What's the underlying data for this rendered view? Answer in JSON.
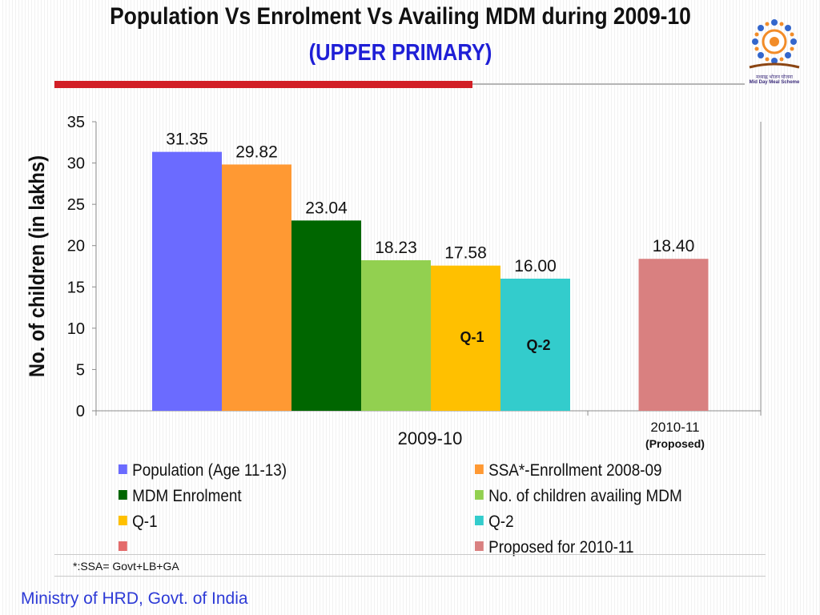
{
  "slide": {
    "title_line1": "Population Vs Enrolment Vs Availing MDM during  2009-10",
    "title_line2": "(UPPER PRIMARY)",
    "logo_text": "मध्याह्न भोजन योजना",
    "logo_subtext": "Mid Day Meal Scheme",
    "footnote": "*:SSA= Govt+LB+GA",
    "footer": "Ministry of HRD, Govt. of India"
  },
  "chart_data": {
    "type": "bar",
    "title": "",
    "ylabel": "No. of children (in lakhs)",
    "xlabel": "",
    "ylim": [
      0,
      35
    ],
    "yticks": [
      "0",
      "5",
      "10",
      "15",
      "20",
      "25",
      "30",
      "35"
    ],
    "grid": false,
    "legend_position": "bottom",
    "groups": [
      {
        "label": "2009-10",
        "sublabel": ""
      },
      {
        "label": "2010-11",
        "sublabel": "(Proposed)"
      }
    ],
    "series": [
      {
        "name": "Population (Age 11-13)",
        "group": 0,
        "value": 31.35,
        "label": "31.35",
        "color": "#6b6bff"
      },
      {
        "name": "SSA*-Enrollment 2008-09",
        "group": 0,
        "value": 29.82,
        "label": "29.82",
        "color": "#ff9933"
      },
      {
        "name": "MDM Enrolment",
        "group": 0,
        "value": 23.04,
        "label": "23.04",
        "color": "#006600"
      },
      {
        "name": "No. of children availing MDM",
        "group": 0,
        "value": 18.23,
        "label": "18.23",
        "color": "#92d050"
      },
      {
        "name": "Q-1",
        "group": 0,
        "value": 17.58,
        "label": "17.58",
        "color": "#ffc000",
        "inner_label": "Q-1"
      },
      {
        "name": "Q-2",
        "group": 0,
        "value": 16.0,
        "label": "16.00",
        "color": "#33cccc",
        "inner_label": "Q-2"
      },
      {
        "name": "",
        "group": 1,
        "value": null,
        "label": "",
        "color": "#e46c6c"
      },
      {
        "name": "Proposed for 2010-11",
        "group": 1,
        "value": 18.4,
        "label": "18.40",
        "color": "#d98080"
      }
    ]
  }
}
